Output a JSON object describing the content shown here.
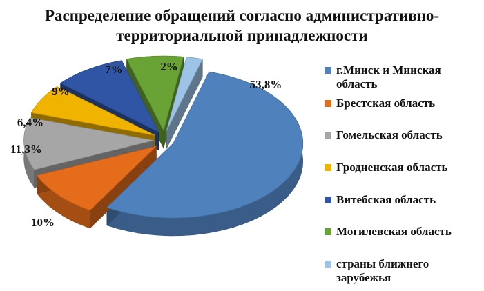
{
  "title_line1": "Распределение обращений согласно административно-",
  "title_line2": "территориальной принадлежности",
  "chart_data": {
    "type": "pie",
    "title": "Распределение обращений согласно административно-территориальной принадлежности",
    "legend_position": "right",
    "slices": [
      {
        "label": "г.Минск и Минская область",
        "value": 53.8,
        "display": "53,8%",
        "color": "#4f81bd"
      },
      {
        "label": "Брестская область",
        "value": 10,
        "display": "10%",
        "color": "#e46c1a"
      },
      {
        "label": "Гомельская область",
        "value": 11.3,
        "display": "11,3%",
        "color": "#a6a6a6"
      },
      {
        "label": "Гродненская область",
        "value": 6.4,
        "display": "6,4%",
        "color": "#f0b400"
      },
      {
        "label": "Витебская область",
        "value": 9,
        "display": "9%",
        "color": "#2f55a4"
      },
      {
        "label": "Могилевская область",
        "value": 7,
        "display": "7%",
        "color": "#6aa335"
      },
      {
        "label": "страны ближнего зарубежья",
        "value": 2,
        "display": "2%",
        "color": "#9dc3e6"
      }
    ]
  },
  "legend": [
    {
      "line1": "г.Минск и Минская",
      "line2": "область"
    },
    {
      "line1": "Брестская область",
      "line2": ""
    },
    {
      "line1": "Гомельская область",
      "line2": ""
    },
    {
      "line1": "Гродненская область",
      "line2": ""
    },
    {
      "line1": "Витебская область",
      "line2": ""
    },
    {
      "line1": "Могилевская область",
      "line2": ""
    },
    {
      "line1": "страны ближнего",
      "line2": "зарубежья"
    }
  ]
}
